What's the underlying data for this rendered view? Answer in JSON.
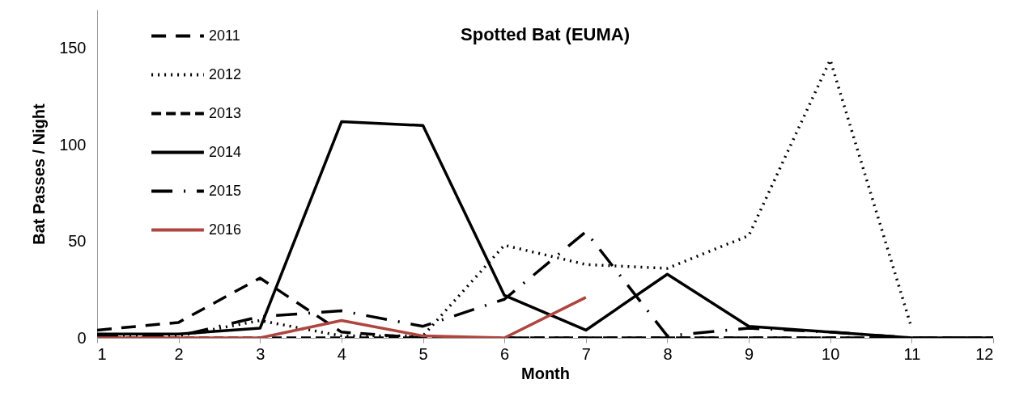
{
  "chart_data": {
    "type": "line",
    "title": "Spotted Bat (EUMA)",
    "xlabel": "Month",
    "ylabel": "Bat Passes / Night",
    "x": [
      1,
      2,
      3,
      4,
      5,
      6,
      7,
      8,
      9,
      10,
      11,
      12
    ],
    "series": [
      {
        "name": "2011",
        "color": "#000000",
        "line_style": "dashed",
        "values": [
          4,
          8,
          31,
          3,
          0,
          0,
          0,
          0,
          0,
          0,
          0,
          0
        ]
      },
      {
        "name": "2012",
        "color": "#000000",
        "line_style": "dotted",
        "values": [
          1,
          1,
          9,
          1,
          1,
          48,
          38,
          36,
          53,
          144,
          5,
          null
        ]
      },
      {
        "name": "2013",
        "color": "#000000",
        "line_style": "dashed",
        "values": [
          0,
          0,
          0,
          0,
          0,
          0,
          0,
          0,
          0,
          0,
          0,
          0
        ]
      },
      {
        "name": "2014",
        "color": "#000000",
        "line_style": "solid",
        "values": [
          2,
          2,
          5,
          112,
          110,
          22,
          4,
          33,
          6,
          3,
          0,
          0
        ]
      },
      {
        "name": "2015",
        "color": "#000000",
        "line_style": "dashdot",
        "values": [
          1,
          1,
          11,
          14,
          6,
          20,
          55,
          1,
          5,
          3,
          0,
          null
        ]
      },
      {
        "name": "2016",
        "color": "#b0443e",
        "line_style": "solid",
        "values": [
          0,
          0,
          0,
          9,
          1,
          0,
          21,
          null,
          null,
          null,
          null,
          null
        ]
      }
    ],
    "xlim": [
      1,
      12
    ],
    "xticks": [
      1,
      2,
      3,
      4,
      5,
      6,
      7,
      8,
      9,
      10,
      11,
      12
    ],
    "ylim": [
      0,
      170
    ],
    "yticks": [
      0,
      50,
      100,
      150
    ],
    "grid": false,
    "legend": "top left"
  }
}
